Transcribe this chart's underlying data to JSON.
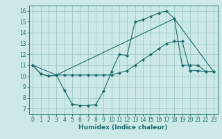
{
  "background_color": "#cde8e8",
  "grid_color": "#9dc8c8",
  "line_color": "#1a6b6b",
  "xlabel": "Humidex (Indice chaleur)",
  "xlim": [
    -0.5,
    23.5
  ],
  "ylim": [
    6.5,
    16.5
  ],
  "xticks": [
    0,
    1,
    2,
    3,
    4,
    5,
    6,
    7,
    8,
    9,
    10,
    11,
    12,
    13,
    14,
    15,
    16,
    17,
    18,
    19,
    20,
    21,
    22,
    23
  ],
  "yticks": [
    7,
    8,
    9,
    10,
    11,
    12,
    13,
    14,
    15,
    16
  ],
  "line1_x": [
    0,
    1,
    2,
    3,
    4,
    5,
    6,
    7,
    8,
    9,
    10,
    11,
    12,
    13,
    14,
    15,
    16,
    17,
    18,
    19,
    20,
    21,
    22,
    23
  ],
  "line1_y": [
    11,
    10.2,
    10,
    10.1,
    8.7,
    7.4,
    7.3,
    7.3,
    7.35,
    8.6,
    10.4,
    12.0,
    11.9,
    15.0,
    15.2,
    15.5,
    15.8,
    16.0,
    15.3,
    11.0,
    11.0,
    11.0,
    10.4,
    10.4
  ],
  "line2_x": [
    0,
    1,
    2,
    3,
    4,
    5,
    6,
    7,
    8,
    9,
    10,
    11,
    12,
    13,
    14,
    15,
    16,
    17,
    18,
    19,
    20,
    21,
    22,
    23
  ],
  "line2_y": [
    11,
    10.2,
    10,
    10.1,
    10.1,
    10.1,
    10.1,
    10.1,
    10.1,
    10.1,
    10.1,
    10.3,
    10.5,
    11.0,
    11.5,
    12.0,
    12.5,
    13.0,
    13.2,
    13.2,
    10.5,
    10.5,
    10.4,
    10.4
  ],
  "line3_x": [
    0,
    3,
    18,
    23
  ],
  "line3_y": [
    11,
    10.1,
    15.3,
    10.4
  ]
}
